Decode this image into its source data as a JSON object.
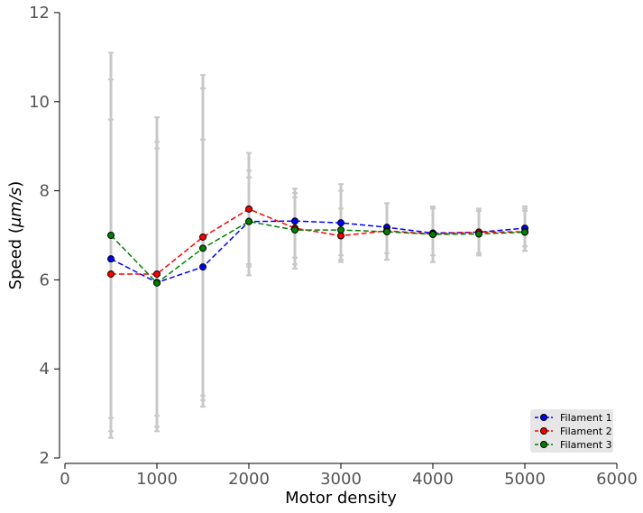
{
  "chart_data": {
    "type": "line",
    "xlabel": "Motor density",
    "ylabel_prefix": "Speed (",
    "ylabel_unit": "μm/s",
    "ylabel_suffix": ")",
    "xlim": [
      0,
      6000
    ],
    "ylim": [
      2,
      12
    ],
    "xticks": [
      0,
      1000,
      2000,
      3000,
      4000,
      5000,
      6000
    ],
    "yticks": [
      2,
      4,
      6,
      8,
      10,
      12
    ],
    "x": [
      500,
      1000,
      1500,
      2000,
      2500,
      3000,
      3500,
      4000,
      4500,
      5000
    ],
    "series": [
      {
        "name": "Filament 1",
        "color": "#0000ff",
        "values": [
          6.47,
          5.94,
          6.29,
          7.31,
          7.32,
          7.28,
          7.18,
          7.05,
          7.07,
          7.16
        ],
        "err_low": [
          2.9,
          2.95,
          3.4,
          6.35,
          6.5,
          6.55,
          6.6,
          6.55,
          6.6,
          6.75
        ],
        "err_high": [
          10.5,
          8.95,
          9.15,
          8.3,
          8.05,
          8.0,
          7.72,
          7.62,
          7.55,
          7.6
        ]
      },
      {
        "name": "Filament 2",
        "color": "#ff0000",
        "values": [
          6.13,
          6.13,
          6.96,
          7.59,
          7.16,
          6.99,
          7.1,
          7.03,
          7.07,
          7.08
        ],
        "err_low": [
          2.6,
          2.7,
          3.3,
          6.1,
          6.25,
          6.4,
          6.45,
          6.4,
          6.55,
          6.65
        ],
        "err_high": [
          9.6,
          9.1,
          10.3,
          8.85,
          7.95,
          7.6,
          7.72,
          7.6,
          7.55,
          7.55
        ]
      },
      {
        "name": "Filament 3",
        "color": "#008000",
        "values": [
          7.0,
          5.93,
          6.71,
          7.31,
          7.12,
          7.12,
          7.08,
          7.02,
          7.03,
          7.07
        ],
        "err_low": [
          2.45,
          2.6,
          3.15,
          6.3,
          6.35,
          6.45,
          6.45,
          6.4,
          6.55,
          6.65
        ],
        "err_high": [
          11.1,
          9.65,
          10.6,
          8.45,
          7.85,
          8.15,
          7.72,
          7.65,
          7.6,
          7.65
        ]
      }
    ],
    "errorbar_color": "#c8c8c8",
    "grid": false,
    "legend_position": "lower-right"
  }
}
